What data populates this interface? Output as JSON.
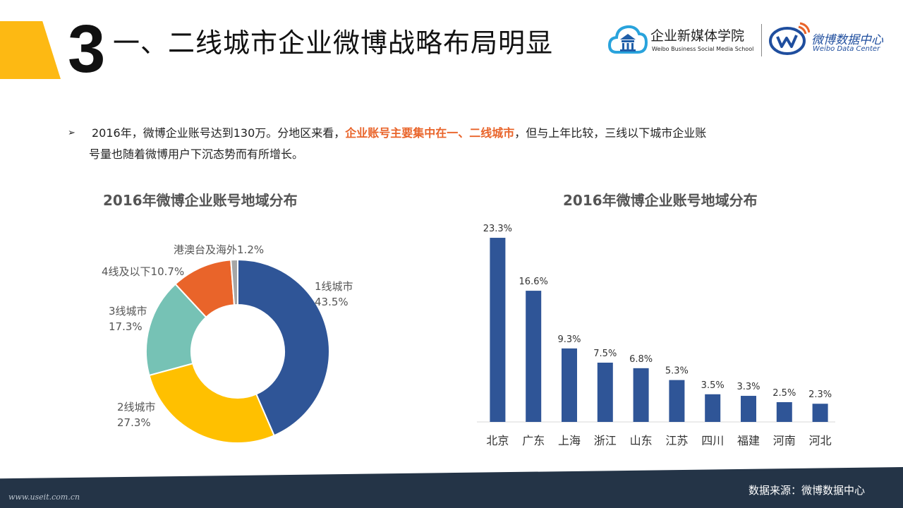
{
  "header": {
    "section_number": "3",
    "title": "一、二线城市企业微博战略布局明显"
  },
  "logos": {
    "school_name": "企业新媒体学院",
    "school_sub": "Weibo Business Social Media School",
    "data_center_name": "微博数据中心",
    "data_center_sub": "Weibo Data Center"
  },
  "bullet": {
    "marker": "➢",
    "part1": "2016年，微博企业账号达到130万。分地区来看，",
    "highlight": "企业账号主要集中在一、二线城市",
    "part2": "，但与上年比较，三线以下城市企业账",
    "line2": "号量也随着微博用户下沉态势而有所增长。"
  },
  "chart_data": [
    {
      "type": "pie",
      "variant": "donut",
      "title": "2016年微博企业账号地域分布",
      "slices": [
        {
          "label": "1线城市",
          "value_label": "43.5%",
          "value": 43.5,
          "color": "#2f5597"
        },
        {
          "label": "2线城市",
          "value_label": "27.3%",
          "value": 27.3,
          "color": "#ffc000"
        },
        {
          "label": "3线城市",
          "value_label": "17.3%",
          "value": 17.3,
          "color": "#76c2b5"
        },
        {
          "label": "4线及以下",
          "value_label": "10.7%",
          "value": 10.7,
          "color": "#e9642a"
        },
        {
          "label": "港澳台及海外",
          "value_label": "1.2%",
          "value": 1.2,
          "color": "#a6a6a6"
        }
      ]
    },
    {
      "type": "bar",
      "title": "2016年微博企业账号地域分布",
      "categories": [
        "北京",
        "广东",
        "上海",
        "浙江",
        "山东",
        "江苏",
        "四川",
        "福建",
        "河南",
        "河北"
      ],
      "values": [
        23.3,
        16.6,
        9.3,
        7.5,
        6.8,
        5.3,
        3.5,
        3.3,
        2.5,
        2.3
      ],
      "value_labels": [
        "23.3%",
        "16.6%",
        "9.3%",
        "7.5%",
        "6.8%",
        "5.3%",
        "3.5%",
        "3.3%",
        "2.5%",
        "2.3%"
      ],
      "ylim": [
        0,
        25
      ],
      "color": "#2f5597",
      "grid": false
    }
  ],
  "footer": {
    "source": "数据来源：微博数据中心",
    "url": "www.useit.com.cn"
  }
}
